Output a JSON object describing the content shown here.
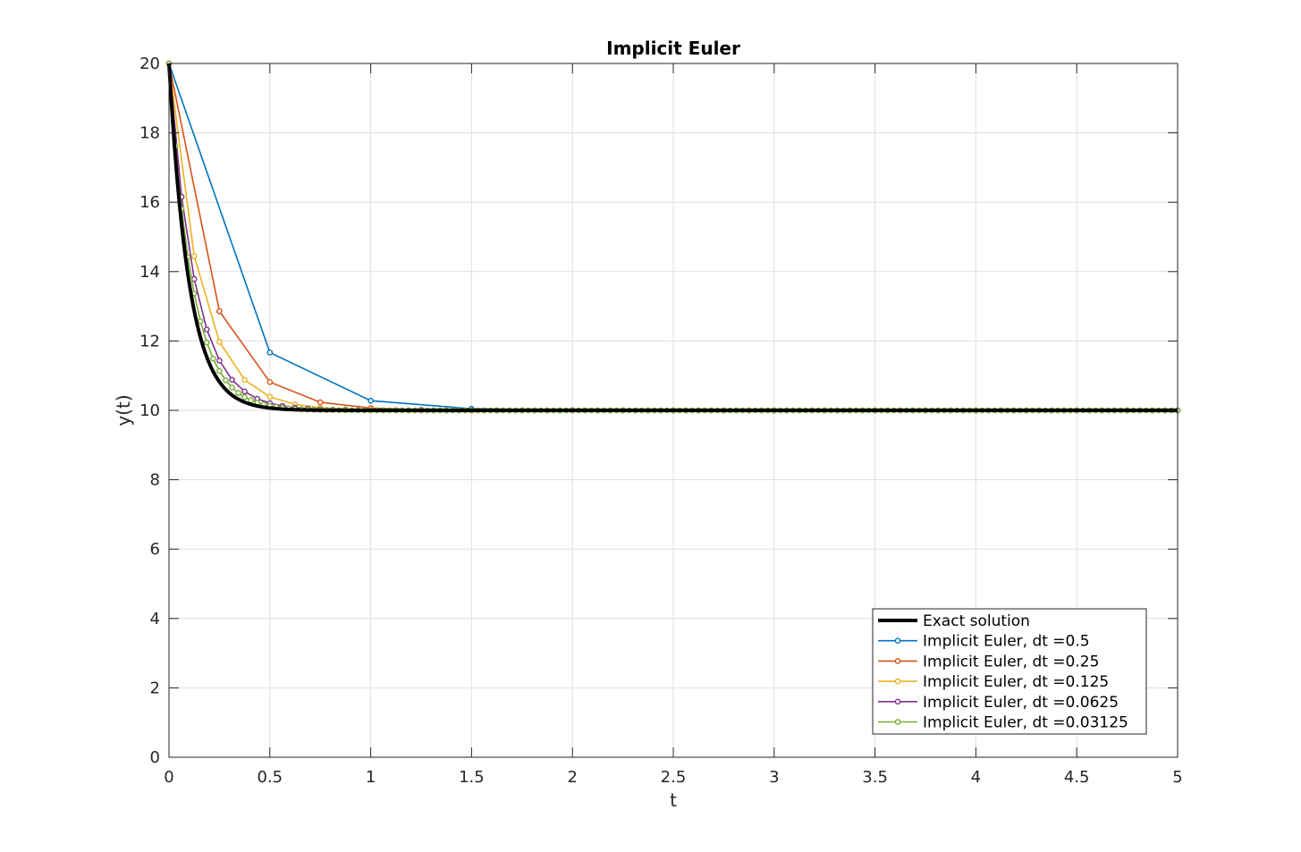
{
  "chart_data": {
    "type": "line",
    "title": "Implicit Euler",
    "xlabel": "t",
    "ylabel": "y(t)",
    "xlim": [
      0,
      5
    ],
    "ylim": [
      0,
      20
    ],
    "xticks": [
      0,
      0.5,
      1,
      1.5,
      2,
      2.5,
      3,
      3.5,
      4,
      4.5,
      5
    ],
    "xtick_labels": [
      "0",
      "0.5",
      "1",
      "1.5",
      "2",
      "2.5",
      "3",
      "3.5",
      "4",
      "4.5",
      "5"
    ],
    "yticks": [
      0,
      2,
      4,
      6,
      8,
      10,
      12,
      14,
      16,
      18,
      20
    ],
    "ytick_labels": [
      "0",
      "2",
      "4",
      "6",
      "8",
      "10",
      "12",
      "14",
      "16",
      "18",
      "20"
    ],
    "grid": true,
    "legend_position": "bottom-right",
    "model": {
      "equilibrium": 10,
      "initial": 20,
      "rate": 10,
      "t_end": 5
    },
    "series": [
      {
        "name": "Exact solution",
        "color": "#000000",
        "kind": "exact",
        "line_width": 4
      },
      {
        "name": "Implicit Euler, dt =0.5",
        "color": "#0072BD",
        "kind": "implicit",
        "dt": 0.5
      },
      {
        "name": "Implicit Euler, dt =0.25",
        "color": "#D95319",
        "kind": "implicit",
        "dt": 0.25
      },
      {
        "name": "Implicit Euler, dt =0.125",
        "color": "#EDB120",
        "kind": "implicit",
        "dt": 0.125
      },
      {
        "name": "Implicit Euler, dt =0.0625",
        "color": "#7E2F8E",
        "kind": "implicit",
        "dt": 0.0625
      },
      {
        "name": "Implicit Euler, dt =0.03125",
        "color": "#77AC30",
        "kind": "implicit",
        "dt": 0.03125
      }
    ]
  }
}
